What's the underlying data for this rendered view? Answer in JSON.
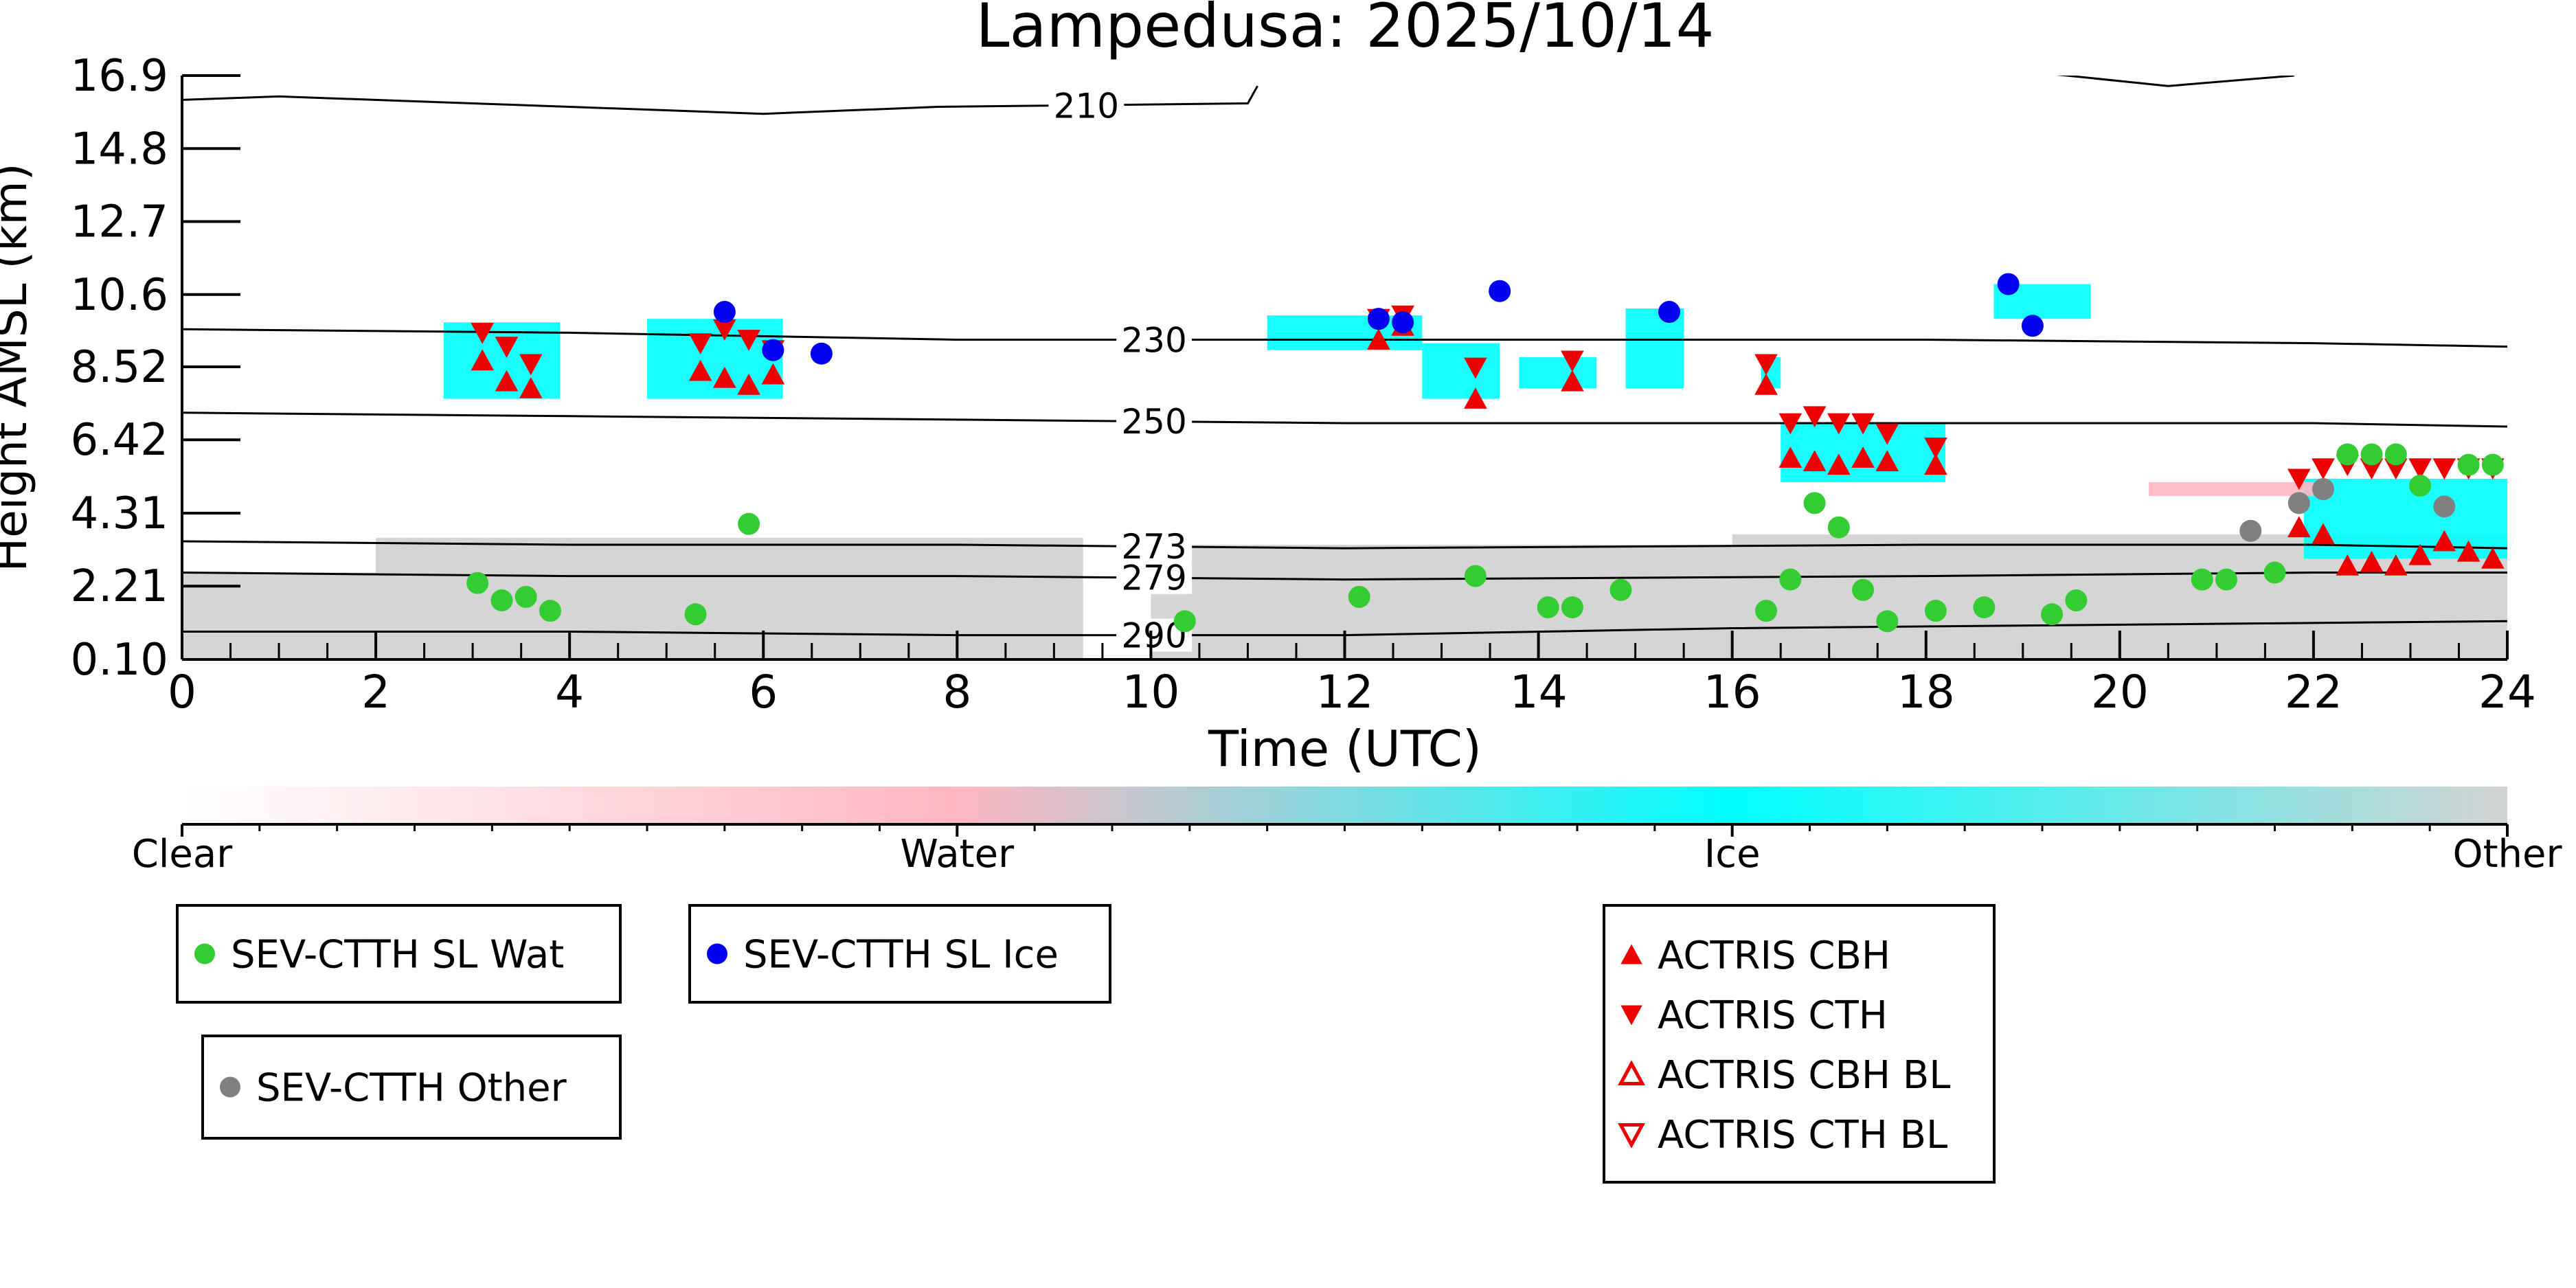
{
  "chart_data": {
    "type": "scatter",
    "title": "Lampedusa: 2025/10/14",
    "xlabel": "Time (UTC)",
    "ylabel": "Height AMSL (km)",
    "xlim": [
      0,
      24
    ],
    "ylim": [
      0.1,
      16.9
    ],
    "x_ticks": [
      "0",
      "2",
      "4",
      "6",
      "8",
      "10",
      "12",
      "14",
      "16",
      "18",
      "20",
      "22",
      "24"
    ],
    "y_ticks": [
      "0.10",
      "2.21",
      "4.31",
      "6.42",
      "8.52",
      "10.6",
      "12.7",
      "14.8",
      "16.9"
    ],
    "y_tick_values": [
      0.1,
      2.21,
      4.31,
      6.42,
      8.52,
      10.6,
      12.7,
      14.8,
      16.9
    ],
    "isotherms": [
      {
        "label": "210",
        "label_x": 9.0,
        "points": [
          [
            0,
            16.2
          ],
          [
            1.0,
            16.3
          ],
          [
            4.0,
            16.0
          ],
          [
            6.0,
            15.8
          ],
          [
            7.8,
            16.0
          ],
          [
            11.0,
            16.1
          ],
          [
            11.1,
            16.6
          ]
        ]
      },
      {
        "label": "",
        "label_x": null,
        "points": [
          [
            19.1,
            17.0
          ],
          [
            20.5,
            16.6
          ],
          [
            21.8,
            16.9
          ]
        ]
      },
      {
        "label": "230",
        "label_x": 9.7,
        "points": [
          [
            0,
            9.6
          ],
          [
            4.0,
            9.5
          ],
          [
            8.0,
            9.3
          ],
          [
            12.0,
            9.3
          ],
          [
            18.0,
            9.3
          ],
          [
            22.0,
            9.2
          ],
          [
            24.0,
            9.1
          ]
        ]
      },
      {
        "label": "250",
        "label_x": 9.7,
        "points": [
          [
            0,
            7.2
          ],
          [
            4.0,
            7.1
          ],
          [
            8.0,
            7.0
          ],
          [
            12.0,
            6.9
          ],
          [
            18.0,
            6.9
          ],
          [
            22.0,
            6.9
          ],
          [
            24.0,
            6.8
          ]
        ]
      },
      {
        "label": "273",
        "label_x": 9.7,
        "points": [
          [
            0,
            3.5
          ],
          [
            4.0,
            3.4
          ],
          [
            8.0,
            3.4
          ],
          [
            12.0,
            3.3
          ],
          [
            18.0,
            3.4
          ],
          [
            22.0,
            3.4
          ],
          [
            24.0,
            3.3
          ]
        ]
      },
      {
        "label": "279",
        "label_x": 9.7,
        "points": [
          [
            0,
            2.6
          ],
          [
            4.0,
            2.5
          ],
          [
            8.0,
            2.5
          ],
          [
            12.0,
            2.4
          ],
          [
            18.0,
            2.5
          ],
          [
            22.0,
            2.6
          ],
          [
            24.0,
            2.6
          ]
        ]
      },
      {
        "label": "290",
        "label_x": 9.7,
        "points": [
          [
            0,
            0.9
          ],
          [
            4.0,
            0.9
          ],
          [
            8.0,
            0.8
          ],
          [
            12.0,
            0.8
          ],
          [
            16.0,
            1.0
          ],
          [
            20.0,
            1.1
          ],
          [
            24.0,
            1.2
          ]
        ]
      }
    ],
    "cloud_regions": [
      {
        "class": "Other",
        "x": [
          0.0,
          9.3
        ],
        "y": [
          0.1,
          2.6
        ]
      },
      {
        "class": "Other",
        "x": [
          2.0,
          9.3
        ],
        "y": [
          2.6,
          3.6
        ]
      },
      {
        "class": "Other",
        "x": [
          10.0,
          16.0
        ],
        "y": [
          0.1,
          3.4
        ]
      },
      {
        "class": "Other",
        "x": [
          16.0,
          24.0
        ],
        "y": [
          0.1,
          3.7
        ]
      },
      {
        "class": "Ice",
        "x": [
          2.7,
          3.9
        ],
        "y": [
          7.6,
          9.8
        ]
      },
      {
        "class": "Ice",
        "x": [
          4.8,
          6.2
        ],
        "y": [
          7.6,
          9.9
        ]
      },
      {
        "class": "Ice",
        "x": [
          11.2,
          12.8
        ],
        "y": [
          9.0,
          10.0
        ]
      },
      {
        "class": "Ice",
        "x": [
          12.8,
          13.6
        ],
        "y": [
          7.6,
          9.2
        ]
      },
      {
        "class": "Ice",
        "x": [
          13.8,
          14.6
        ],
        "y": [
          7.9,
          8.8
        ]
      },
      {
        "class": "Ice",
        "x": [
          14.9,
          15.5
        ],
        "y": [
          7.9,
          10.2
        ]
      },
      {
        "class": "Ice",
        "x": [
          16.3,
          16.5
        ],
        "y": [
          7.9,
          8.8
        ]
      },
      {
        "class": "Ice",
        "x": [
          18.7,
          19.7
        ],
        "y": [
          9.9,
          10.9
        ]
      },
      {
        "class": "Ice",
        "x": [
          16.5,
          18.2
        ],
        "y": [
          5.2,
          6.9
        ]
      },
      {
        "class": "Ice",
        "x": [
          21.9,
          24.0
        ],
        "y": [
          3.0,
          5.3
        ]
      },
      {
        "class": "Water",
        "x": [
          20.3,
          22.0
        ],
        "y": [
          4.8,
          5.2
        ]
      }
    ],
    "series": [
      {
        "name": "SEV-CTTH SL Wat",
        "marker": "circle",
        "color": "#33cc33",
        "points": [
          [
            3.05,
            2.3
          ],
          [
            3.3,
            1.8
          ],
          [
            3.55,
            1.9
          ],
          [
            3.8,
            1.5
          ],
          [
            5.3,
            1.4
          ],
          [
            5.85,
            4.0
          ],
          [
            10.35,
            1.2
          ],
          [
            12.15,
            1.9
          ],
          [
            13.35,
            2.5
          ],
          [
            14.1,
            1.6
          ],
          [
            14.35,
            1.6
          ],
          [
            14.85,
            2.1
          ],
          [
            16.35,
            1.5
          ],
          [
            16.6,
            2.4
          ],
          [
            16.85,
            4.6
          ],
          [
            17.1,
            3.9
          ],
          [
            17.35,
            2.1
          ],
          [
            17.6,
            1.2
          ],
          [
            18.1,
            1.5
          ],
          [
            18.6,
            1.6
          ],
          [
            19.3,
            1.4
          ],
          [
            19.55,
            1.8
          ],
          [
            20.85,
            2.4
          ],
          [
            21.1,
            2.4
          ],
          [
            21.6,
            2.6
          ],
          [
            22.35,
            6.0
          ],
          [
            22.6,
            6.0
          ],
          [
            22.85,
            6.0
          ],
          [
            23.1,
            5.1
          ],
          [
            23.6,
            5.7
          ],
          [
            23.85,
            5.7
          ]
        ]
      },
      {
        "name": "SEV-CTTH SL Ice",
        "marker": "circle",
        "color": "#0000ee",
        "points": [
          [
            5.6,
            10.1
          ],
          [
            6.1,
            9.0
          ],
          [
            6.6,
            8.9
          ],
          [
            12.35,
            9.9
          ],
          [
            12.6,
            9.8
          ],
          [
            13.6,
            10.7
          ],
          [
            15.35,
            10.1
          ],
          [
            18.85,
            10.9
          ],
          [
            19.1,
            9.7
          ]
        ]
      },
      {
        "name": "SEV-CTTH Other",
        "marker": "circle",
        "color": "#808080",
        "points": [
          [
            21.35,
            3.8
          ],
          [
            21.85,
            4.6
          ],
          [
            22.1,
            5.0
          ],
          [
            23.35,
            4.5
          ]
        ]
      },
      {
        "name": "ACTRIS CBH",
        "marker": "triangle-up",
        "color": "#ee0000",
        "points": [
          [
            3.1,
            8.7
          ],
          [
            3.35,
            8.1
          ],
          [
            3.6,
            7.9
          ],
          [
            5.35,
            8.4
          ],
          [
            5.6,
            8.2
          ],
          [
            5.85,
            8.0
          ],
          [
            6.1,
            8.3
          ],
          [
            12.35,
            9.3
          ],
          [
            12.6,
            9.7
          ],
          [
            13.35,
            7.6
          ],
          [
            14.35,
            8.1
          ],
          [
            16.35,
            8.0
          ],
          [
            16.6,
            5.9
          ],
          [
            16.85,
            5.8
          ],
          [
            17.1,
            5.7
          ],
          [
            17.35,
            5.9
          ],
          [
            17.6,
            5.8
          ],
          [
            18.1,
            5.7
          ],
          [
            21.85,
            3.9
          ],
          [
            22.1,
            3.7
          ],
          [
            22.35,
            2.8
          ],
          [
            22.6,
            2.9
          ],
          [
            22.85,
            2.8
          ],
          [
            23.1,
            3.1
          ],
          [
            23.35,
            3.5
          ],
          [
            23.6,
            3.2
          ],
          [
            23.85,
            3.0
          ]
        ]
      },
      {
        "name": "ACTRIS CTH",
        "marker": "triangle-down",
        "color": "#ee0000",
        "points": [
          [
            3.1,
            9.5
          ],
          [
            3.35,
            9.1
          ],
          [
            3.6,
            8.6
          ],
          [
            5.35,
            9.2
          ],
          [
            5.6,
            9.6
          ],
          [
            5.85,
            9.3
          ],
          [
            6.1,
            9.0
          ],
          [
            12.35,
            9.9
          ],
          [
            12.6,
            10.0
          ],
          [
            13.35,
            8.5
          ],
          [
            14.35,
            8.7
          ],
          [
            16.35,
            8.6
          ],
          [
            16.6,
            6.9
          ],
          [
            16.85,
            7.1
          ],
          [
            17.1,
            6.9
          ],
          [
            17.35,
            6.9
          ],
          [
            17.6,
            6.6
          ],
          [
            18.1,
            6.2
          ],
          [
            21.85,
            5.3
          ],
          [
            22.1,
            5.6
          ],
          [
            22.35,
            5.7
          ],
          [
            22.6,
            5.6
          ],
          [
            22.85,
            5.6
          ],
          [
            23.1,
            5.6
          ],
          [
            23.35,
            5.6
          ],
          [
            23.6,
            5.6
          ],
          [
            23.85,
            5.6
          ]
        ]
      },
      {
        "name": "ACTRIS CBH BL",
        "marker": "triangle-up-open",
        "color": "#ee0000",
        "points": []
      },
      {
        "name": "ACTRIS CTH BL",
        "marker": "triangle-down-open",
        "color": "#ee0000",
        "points": []
      }
    ],
    "colorbar": {
      "labels": [
        "Clear",
        "Water",
        "Ice",
        "Other"
      ],
      "colors": [
        "#ffffff",
        "#ffb6c1",
        "#00ffff",
        "#d3d3d3"
      ]
    },
    "legend": {
      "placement": "bottom",
      "boxes": [
        [
          "SEV-CTTH SL Wat"
        ],
        [
          "SEV-CTTH SL Ice"
        ],
        [
          "SEV-CTTH Other"
        ],
        [
          "ACTRIS CBH",
          "ACTRIS CTH",
          "ACTRIS CBH BL",
          "ACTRIS CTH BL"
        ]
      ]
    }
  }
}
